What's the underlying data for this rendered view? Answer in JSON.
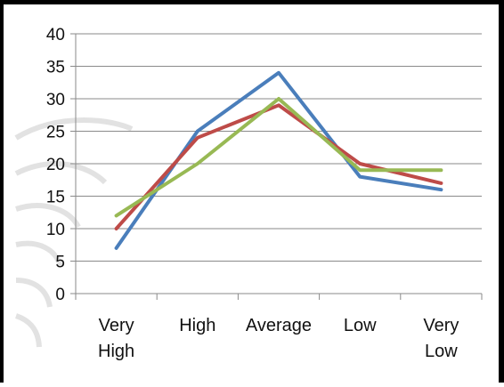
{
  "chart_data": {
    "type": "line",
    "title": "",
    "xlabel": "",
    "ylabel": "",
    "categories": [
      [
        "Very",
        "High"
      ],
      [
        "High"
      ],
      [
        "Average"
      ],
      [
        "Low"
      ],
      [
        "Very",
        "Low"
      ]
    ],
    "ylim": [
      0,
      40
    ],
    "yticks": [
      0,
      5,
      10,
      15,
      20,
      25,
      30,
      35,
      40
    ],
    "grid": true,
    "legend": "none",
    "series": [
      {
        "color": "#4a7ebb",
        "values": [
          7,
          25,
          34,
          18,
          16
        ]
      },
      {
        "color": "#be4b48",
        "values": [
          10,
          24,
          29,
          20,
          17
        ]
      },
      {
        "color": "#98b954",
        "values": [
          12,
          20,
          30,
          19,
          19
        ]
      }
    ]
  }
}
